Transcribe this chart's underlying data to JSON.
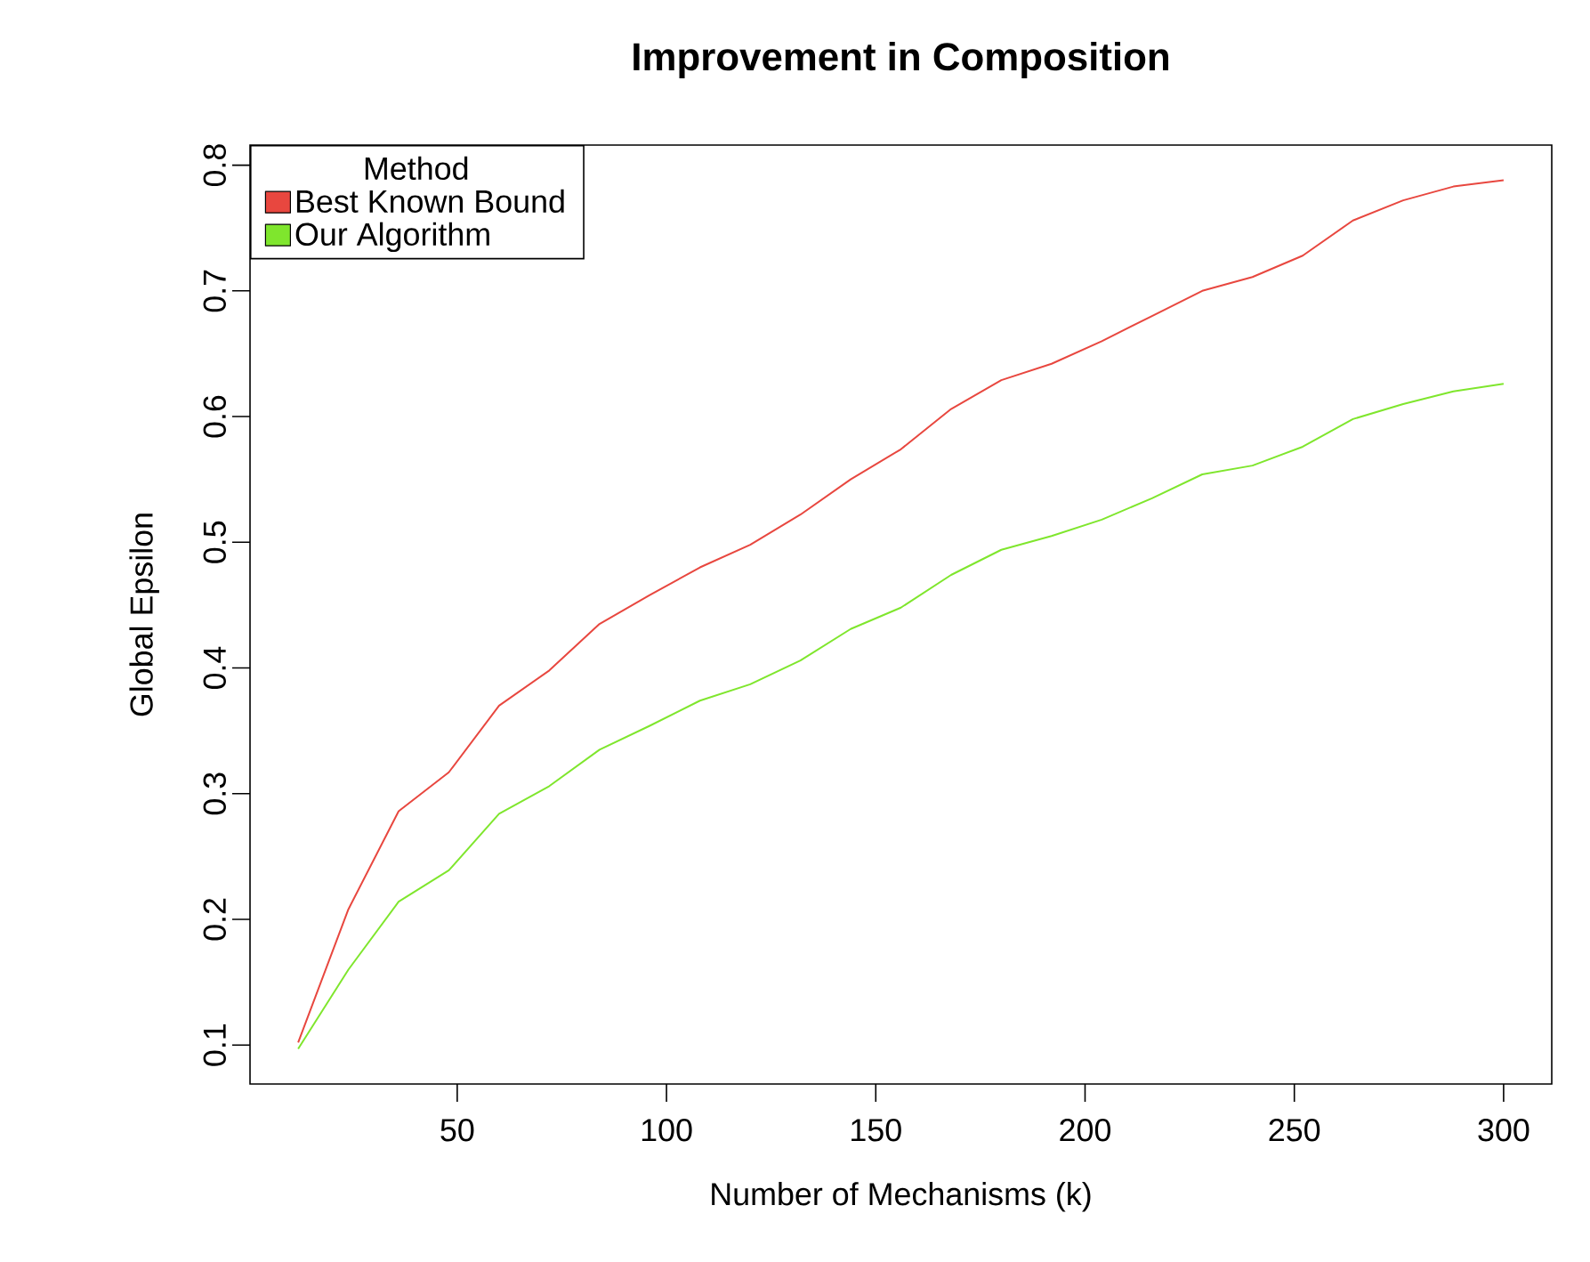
{
  "chart_data": {
    "type": "line",
    "title": "Improvement in Composition",
    "xlabel": "Number of Mechanisms (k)",
    "ylabel": "Global Epsilon",
    "legend_title": "Method",
    "legend": "top left",
    "grid": false,
    "marker": "none",
    "line_style": "solid",
    "x": [
      12,
      24,
      36,
      48,
      60,
      72,
      84,
      96,
      108,
      120,
      132,
      144,
      156,
      168,
      180,
      192,
      204,
      216,
      228,
      240,
      252,
      264,
      276,
      288,
      300
    ],
    "xlim": [
      0.5,
      311.5
    ],
    "ylim": [
      0.069,
      0.816
    ],
    "xticks": [
      50,
      100,
      150,
      200,
      250,
      300
    ],
    "yticks": [
      0.1,
      0.2,
      0.3,
      0.4,
      0.5,
      0.6,
      0.7,
      0.8
    ],
    "series": [
      {
        "name": "Best Known Bound",
        "color": "#e8473f",
        "values": [
          0.102,
          0.208,
          0.286,
          0.317,
          0.37,
          0.398,
          0.435,
          0.458,
          0.48,
          0.498,
          0.522,
          0.55,
          0.574,
          0.606,
          0.629,
          0.642,
          0.66,
          0.68,
          0.7,
          0.711,
          0.728,
          0.756,
          0.772,
          0.783,
          0.788
        ]
      },
      {
        "name": "Our Algorithm",
        "color": "#7fe62d",
        "values": [
          0.097,
          0.16,
          0.214,
          0.239,
          0.284,
          0.306,
          0.335,
          0.354,
          0.374,
          0.387,
          0.406,
          0.431,
          0.448,
          0.474,
          0.494,
          0.505,
          0.518,
          0.535,
          0.554,
          0.561,
          0.576,
          0.598,
          0.61,
          0.62,
          0.626
        ]
      }
    ]
  }
}
